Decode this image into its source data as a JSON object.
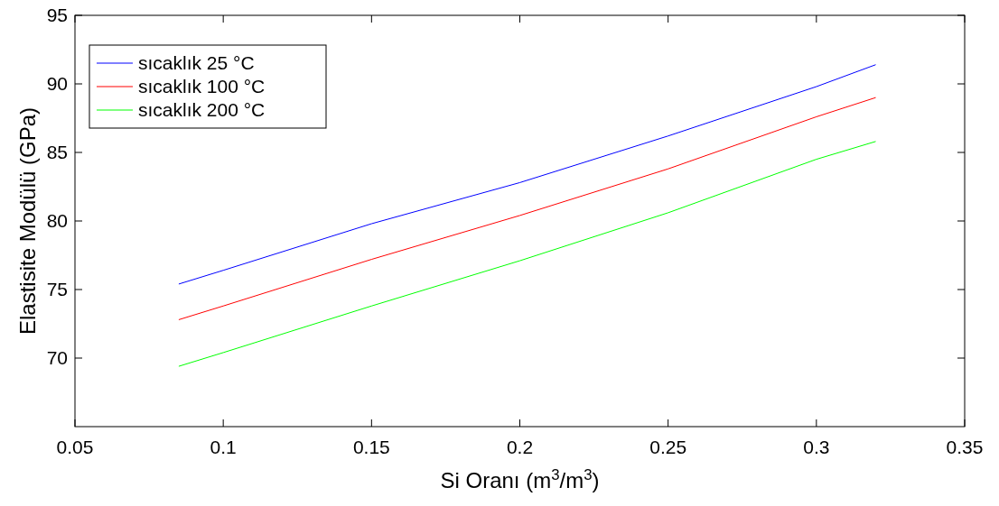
{
  "chart_data": {
    "type": "line",
    "xlabel": "Si Oranı (m$^{3}$/m$^{3}$)",
    "ylabel": "Elastisite Modülü (GPa)",
    "xlim": [
      0.05,
      0.35
    ],
    "xticks": [
      0.05,
      0.1,
      0.15,
      0.2,
      0.25,
      0.3,
      0.35
    ],
    "ylim": [
      65,
      95
    ],
    "yticks": [
      70,
      75,
      80,
      85,
      90,
      95
    ],
    "grid": false,
    "legend": "top left",
    "line_style": "solid",
    "marker": "none",
    "series": [
      {
        "name": "sıcaklık 25 °C",
        "color": "#0000ff",
        "x": [
          0.085,
          0.1,
          0.15,
          0.2,
          0.25,
          0.3,
          0.32
        ],
        "values": [
          75.4,
          76.4,
          79.8,
          82.8,
          86.2,
          89.8,
          91.4
        ]
      },
      {
        "name": "sıcaklık 100 °C",
        "color": "#ff0000",
        "x": [
          0.085,
          0.1,
          0.15,
          0.2,
          0.25,
          0.3,
          0.32
        ],
        "values": [
          72.8,
          73.8,
          77.2,
          80.4,
          83.8,
          87.6,
          89.0
        ]
      },
      {
        "name": "sıcaklık 200 °C",
        "color": "#00ff00",
        "x": [
          0.085,
          0.1,
          0.15,
          0.2,
          0.25,
          0.3,
          0.32
        ],
        "values": [
          69.4,
          70.4,
          73.8,
          77.1,
          80.6,
          84.5,
          85.8
        ]
      }
    ]
  }
}
